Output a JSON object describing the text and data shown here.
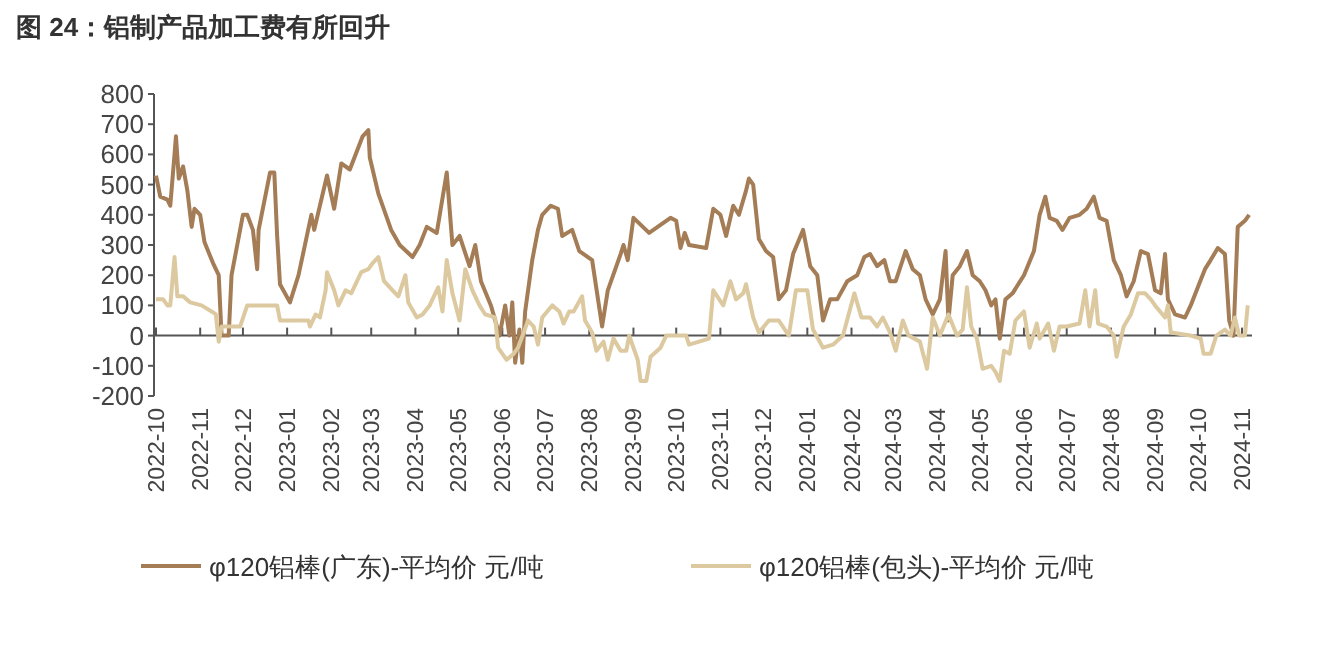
{
  "chart_data": {
    "type": "line",
    "title": "图 24：铝制产品加工费有所回升",
    "xlim": [
      "2022-10-01",
      "2024-11-08"
    ],
    "ylim": [
      -200,
      800
    ],
    "yticks": [
      -200,
      -100,
      0,
      100,
      200,
      300,
      400,
      500,
      600,
      700,
      800
    ],
    "xticks": [
      "2022-10",
      "2022-11",
      "2022-12",
      "2023-01",
      "2023-02",
      "2023-03",
      "2023-04",
      "2023-05",
      "2023-06",
      "2023-07",
      "2023-08",
      "2023-09",
      "2023-10",
      "2023-11",
      "2023-12",
      "2024-01",
      "2024-02",
      "2024-03",
      "2024-04",
      "2024-05",
      "2024-06",
      "2024-07",
      "2024-08",
      "2024-09",
      "2024-10",
      "2024-11"
    ],
    "legend": "bottom",
    "series": [
      {
        "name": "φ120铝棒(广东)-平均价 元/吨",
        "color": "#a47c55",
        "x": [
          "2022-10-01",
          "2022-10-04",
          "2022-10-09",
          "2022-10-11",
          "2022-10-14",
          "2022-10-15",
          "2022-10-17",
          "2022-10-20",
          "2022-10-23",
          "2022-10-26",
          "2022-10-28",
          "2022-11-01",
          "2022-11-04",
          "2022-11-10",
          "2022-11-14",
          "2022-11-16",
          "2022-11-21",
          "2022-11-23",
          "2022-11-27",
          "2022-12-01",
          "2022-12-04",
          "2022-12-08",
          "2022-12-11",
          "2022-12-12",
          "2022-12-20",
          "2022-12-23",
          "2022-12-25",
          "2022-12-27",
          "2023-01-03",
          "2023-01-09",
          "2023-01-18",
          "2023-01-20",
          "2023-01-29",
          "2023-02-03",
          "2023-02-08",
          "2023-02-14",
          "2023-02-23",
          "2023-02-27",
          "2023-02-28",
          "2023-03-06",
          "2023-03-15",
          "2023-03-21",
          "2023-03-30",
          "2023-04-04",
          "2023-04-09",
          "2023-04-16",
          "2023-04-23",
          "2023-04-27",
          "2023-05-02",
          "2023-05-09",
          "2023-05-13",
          "2023-05-17",
          "2023-05-24",
          "2023-05-30",
          "2023-06-03",
          "2023-06-06",
          "2023-06-08",
          "2023-06-10",
          "2023-06-13",
          "2023-06-15",
          "2023-06-17",
          "2023-06-22",
          "2023-06-26",
          "2023-06-29",
          "2023-07-05",
          "2023-07-10",
          "2023-07-13",
          "2023-07-20",
          "2023-07-25",
          "2023-08-03",
          "2023-08-10",
          "2023-08-14",
          "2023-08-23",
          "2023-08-25",
          "2023-08-28",
          "2023-09-01",
          "2023-09-12",
          "2023-09-27",
          "2023-10-01",
          "2023-10-04",
          "2023-10-07",
          "2023-10-10",
          "2023-10-22",
          "2023-10-27",
          "2023-11-01",
          "2023-11-05",
          "2023-11-10",
          "2023-11-14",
          "2023-11-19",
          "2023-11-21",
          "2023-11-24",
          "2023-11-28",
          "2023-12-03",
          "2023-12-08",
          "2023-12-12",
          "2023-12-17",
          "2023-12-22",
          "2023-12-29",
          "2024-01-03",
          "2024-01-08",
          "2024-01-12",
          "2024-01-17",
          "2024-01-22",
          "2024-01-29",
          "2024-02-05",
          "2024-02-10",
          "2024-02-14",
          "2024-02-19",
          "2024-02-24",
          "2024-02-28",
          "2024-03-03",
          "2024-03-10",
          "2024-03-15",
          "2024-03-20",
          "2024-03-24",
          "2024-03-29",
          "2024-04-03",
          "2024-04-07",
          "2024-04-09",
          "2024-04-12",
          "2024-04-17",
          "2024-04-22",
          "2024-04-26",
          "2024-05-01",
          "2024-05-05",
          "2024-05-09",
          "2024-05-12",
          "2024-05-15",
          "2024-05-19",
          "2024-05-24",
          "2024-06-01",
          "2024-06-08",
          "2024-06-12",
          "2024-06-16",
          "2024-06-19",
          "2024-06-24",
          "2024-06-28",
          "2024-07-03",
          "2024-07-10",
          "2024-07-15",
          "2024-07-20",
          "2024-07-24",
          "2024-07-29",
          "2024-08-03",
          "2024-08-08",
          "2024-08-12",
          "2024-08-17",
          "2024-08-22",
          "2024-08-27",
          "2024-09-01",
          "2024-09-05",
          "2024-09-08",
          "2024-09-10",
          "2024-09-15",
          "2024-09-22",
          "2024-09-26",
          "2024-10-01",
          "2024-10-06",
          "2024-10-10",
          "2024-10-15",
          "2024-10-20",
          "2024-10-23",
          "2024-10-26",
          "2024-10-29",
          "2024-11-03",
          "2024-11-06"
        ],
        "values": [
          530,
          460,
          450,
          430,
          600,
          660,
          520,
          560,
          480,
          360,
          420,
          400,
          310,
          240,
          200,
          0,
          0,
          200,
          300,
          400,
          400,
          350,
          220,
          350,
          540,
          540,
          330,
          170,
          110,
          200,
          400,
          350,
          530,
          420,
          570,
          550,
          660,
          680,
          590,
          470,
          350,
          300,
          260,
          300,
          360,
          340,
          540,
          300,
          330,
          230,
          300,
          180,
          100,
          0,
          100,
          0,
          110,
          -90,
          20,
          -90,
          80,
          250,
          350,
          400,
          430,
          420,
          330,
          350,
          280,
          250,
          30,
          150,
          270,
          300,
          250,
          390,
          340,
          390,
          380,
          290,
          340,
          300,
          290,
          420,
          400,
          330,
          430,
          400,
          480,
          520,
          500,
          320,
          280,
          260,
          120,
          150,
          270,
          350,
          230,
          200,
          50,
          120,
          120,
          180,
          200,
          260,
          270,
          230,
          250,
          180,
          180,
          280,
          220,
          200,
          120,
          70,
          120,
          280,
          50,
          200,
          230,
          280,
          200,
          180,
          150,
          100,
          120,
          -10,
          120,
          140,
          200,
          280,
          400,
          460,
          390,
          380,
          350,
          390,
          400,
          420,
          460,
          390,
          380,
          250,
          200,
          130,
          180,
          280,
          270,
          150,
          140,
          270,
          120,
          70,
          60,
          100,
          160,
          220,
          250,
          290,
          270,
          50,
          0,
          360,
          380,
          400
        ]
      },
      {
        "name": "φ120铝棒(包头)-平均价 元/吨",
        "color": "#dcc9a0",
        "x": [
          "2022-10-01",
          "2022-10-06",
          "2022-10-09",
          "2022-10-11",
          "2022-10-14",
          "2022-10-16",
          "2022-10-20",
          "2022-10-25",
          "2022-11-02",
          "2022-11-09",
          "2022-11-12",
          "2022-11-14",
          "2022-11-16",
          "2022-11-29",
          "2022-12-04",
          "2022-12-25",
          "2022-12-27",
          "2023-01-16",
          "2023-01-17",
          "2023-01-21",
          "2023-01-24",
          "2023-01-28",
          "2023-01-29",
          "2023-02-03",
          "2023-02-06",
          "2023-02-11",
          "2023-02-15",
          "2023-02-22",
          "2023-02-27",
          "2023-03-02",
          "2023-03-06",
          "2023-03-10",
          "2023-03-16",
          "2023-03-20",
          "2023-03-25",
          "2023-03-27",
          "2023-04-02",
          "2023-04-06",
          "2023-04-11",
          "2023-04-17",
          "2023-04-20",
          "2023-04-23",
          "2023-04-27",
          "2023-05-02",
          "2023-05-06",
          "2023-05-11",
          "2023-05-16",
          "2023-05-20",
          "2023-05-27",
          "2023-05-29",
          "2023-06-04",
          "2023-06-09",
          "2023-06-12",
          "2023-06-16",
          "2023-06-19",
          "2023-06-23",
          "2023-06-26",
          "2023-06-29",
          "2023-07-06",
          "2023-07-11",
          "2023-07-14",
          "2023-07-18",
          "2023-07-21",
          "2023-07-27",
          "2023-07-29",
          "2023-08-03",
          "2023-08-06",
          "2023-08-11",
          "2023-08-14",
          "2023-08-18",
          "2023-08-23",
          "2023-08-27",
          "2023-08-29",
          "2023-09-04",
          "2023-09-06",
          "2023-09-10",
          "2023-09-13",
          "2023-09-20",
          "2023-09-24",
          "2023-10-08",
          "2023-10-10",
          "2023-10-17",
          "2023-10-24",
          "2023-10-27",
          "2023-11-03",
          "2023-11-08",
          "2023-11-12",
          "2023-11-17",
          "2023-11-19",
          "2023-11-24",
          "2023-11-28",
          "2023-12-05",
          "2023-12-12",
          "2023-12-19",
          "2023-12-24",
          "2024-01-01",
          "2024-01-05",
          "2024-01-12",
          "2024-01-19",
          "2024-01-26",
          "2024-02-03",
          "2024-02-08",
          "2024-02-14",
          "2024-02-19",
          "2024-02-23",
          "2024-02-28",
          "2024-03-03",
          "2024-03-08",
          "2024-03-12",
          "2024-03-20",
          "2024-03-25",
          "2024-03-29",
          "2024-04-03",
          "2024-04-09",
          "2024-04-15",
          "2024-04-19",
          "2024-04-22",
          "2024-04-25",
          "2024-04-29",
          "2024-05-03",
          "2024-05-09",
          "2024-05-12",
          "2024-05-15",
          "2024-05-18",
          "2024-05-22",
          "2024-05-26",
          "2024-06-01",
          "2024-06-05",
          "2024-06-10",
          "2024-06-12",
          "2024-06-18",
          "2024-06-22",
          "2024-06-26",
          "2024-07-01",
          "2024-07-10",
          "2024-07-14",
          "2024-07-17",
          "2024-07-21",
          "2024-07-23",
          "2024-07-29",
          "2024-08-03",
          "2024-08-05",
          "2024-08-10",
          "2024-08-15",
          "2024-08-20",
          "2024-08-25",
          "2024-08-29",
          "2024-09-01",
          "2024-09-08",
          "2024-09-10",
          "2024-09-12",
          "2024-09-26",
          "2024-10-03",
          "2024-10-05",
          "2024-10-10",
          "2024-10-14",
          "2024-10-20",
          "2024-10-24",
          "2024-10-27",
          "2024-10-30",
          "2024-11-03",
          "2024-11-05"
        ],
        "values": [
          120,
          120,
          100,
          100,
          260,
          130,
          130,
          110,
          100,
          80,
          70,
          -20,
          30,
          30,
          100,
          100,
          50,
          50,
          30,
          70,
          60,
          150,
          210,
          150,
          100,
          150,
          140,
          210,
          220,
          240,
          260,
          180,
          150,
          130,
          200,
          110,
          60,
          70,
          100,
          160,
          80,
          250,
          140,
          50,
          220,
          150,
          100,
          70,
          60,
          -40,
          -80,
          -60,
          -40,
          10,
          50,
          30,
          -30,
          60,
          100,
          80,
          40,
          80,
          80,
          130,
          50,
          10,
          -50,
          -20,
          -80,
          -10,
          -50,
          -50,
          0,
          -80,
          -150,
          -150,
          -70,
          -40,
          0,
          0,
          -30,
          -20,
          -10,
          150,
          100,
          180,
          120,
          140,
          170,
          60,
          10,
          50,
          50,
          0,
          150,
          150,
          20,
          -40,
          -30,
          0,
          140,
          60,
          60,
          30,
          60,
          10,
          -50,
          50,
          0,
          -20,
          -110,
          60,
          0,
          70,
          0,
          20,
          160,
          30,
          -10,
          -110,
          -100,
          -120,
          -150,
          -50,
          -60,
          50,
          80,
          -40,
          40,
          -10,
          40,
          -50,
          30,
          30,
          40,
          150,
          30,
          150,
          40,
          30,
          0,
          -70,
          30,
          70,
          140,
          140,
          120,
          100,
          60,
          100,
          10,
          0,
          -10,
          -60,
          -60,
          0,
          20,
          0,
          60,
          0,
          0,
          100
        ]
      }
    ]
  }
}
